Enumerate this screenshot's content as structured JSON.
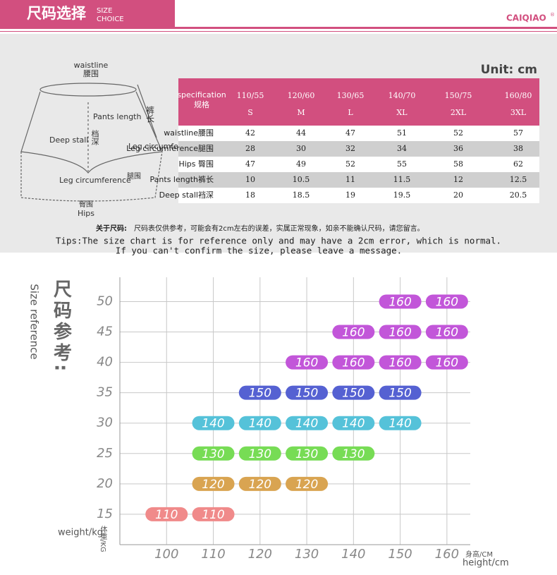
{
  "header": {
    "title": "尺码选择",
    "subtitle_lines": [
      "SIZE",
      "CHOICE"
    ],
    "brand": "CAIQIAO",
    "brand_mark": "®"
  },
  "unit": "Unit: cm",
  "diagram": {
    "waist_en": "waistline",
    "waist_cn": "腰围",
    "length_en": "Pants length",
    "length_cn": "裤长",
    "stall_en": "Deep stall",
    "stall_cn": "档深",
    "leg_en": "Leg circumference",
    "leg_cn": "腿围",
    "leg2_en": "Leg circumference",
    "leg2_cn": "腿围",
    "hips_cn": "臀围",
    "hips_en": "Hips"
  },
  "table": {
    "header_en": "specification",
    "header_cn": "规格",
    "columns": [
      {
        "spec": "110/55",
        "size": "S"
      },
      {
        "spec": "120/60",
        "size": "M"
      },
      {
        "spec": "130/65",
        "size": "L"
      },
      {
        "spec": "140/70",
        "size": "XL"
      },
      {
        "spec": "150/75",
        "size": "2XL"
      },
      {
        "spec": "160/80",
        "size": "3XL"
      }
    ],
    "rows": [
      {
        "label": "waistline腰围",
        "values": [
          42,
          44,
          47,
          51,
          52,
          57
        ]
      },
      {
        "label": "Leg circumference腿围",
        "values": [
          28,
          30,
          32,
          34,
          36,
          38
        ]
      },
      {
        "label": "Hips 臀围",
        "values": [
          47,
          49,
          52,
          55,
          58,
          62
        ]
      },
      {
        "label": "Pants length裤长",
        "values": [
          10,
          10.5,
          11,
          11.5,
          12,
          12.5
        ]
      },
      {
        "label": "Deep stall裆深",
        "values": [
          18,
          18.5,
          19,
          19.5,
          20,
          20.5
        ]
      }
    ]
  },
  "notes": {
    "cn_lead": "关于尺码:",
    "cn_text": "尺码表仅供参考，可能会有2cm左右的误差，实属正常现象，如亲不能确认尺码，请您留言。",
    "tips": [
      "Tips:The size chart is for reference only and may have a 2cm error, which is normal.",
      "If you can't confirm the size, please leave a message."
    ]
  },
  "chart_data": {
    "type": "scatter",
    "title_en": "Size reference",
    "title_cn": "尺码参考:",
    "ylabel_en": "weight/kg",
    "ylabel_cn": "体重/KG",
    "xlabel_cn": "身高/CM",
    "xlabel_en": "height/cm",
    "xlim": [
      90,
      165
    ],
    "xticks": [
      100,
      110,
      120,
      130,
      140,
      150,
      160
    ],
    "ylim": [
      10,
      54
    ],
    "yticks": [
      15,
      20,
      25,
      30,
      35,
      40,
      45,
      50
    ],
    "grid": true,
    "series": [
      {
        "name": "110",
        "color": "#f08a8a",
        "x": [
          100,
          110
        ],
        "y": [
          15,
          15
        ]
      },
      {
        "name": "120",
        "color": "#d9a451",
        "x": [
          110,
          120,
          130
        ],
        "y": [
          20,
          20,
          20
        ]
      },
      {
        "name": "130",
        "color": "#77dc55",
        "x": [
          110,
          120,
          130,
          140
        ],
        "y": [
          25,
          25,
          25,
          25
        ]
      },
      {
        "name": "140",
        "color": "#55c2d9",
        "x": [
          110,
          120,
          130,
          140,
          150
        ],
        "y": [
          30,
          30,
          30,
          30,
          30
        ]
      },
      {
        "name": "150",
        "color": "#5561d2",
        "x": [
          120,
          130,
          140,
          150
        ],
        "y": [
          35,
          35,
          35,
          35
        ]
      },
      {
        "name": "160",
        "color": "#c256d9",
        "x": [
          130,
          140,
          150,
          160,
          140,
          150,
          160,
          150,
          160
        ],
        "y": [
          40,
          40,
          40,
          40,
          45,
          45,
          45,
          50,
          50
        ]
      }
    ]
  }
}
